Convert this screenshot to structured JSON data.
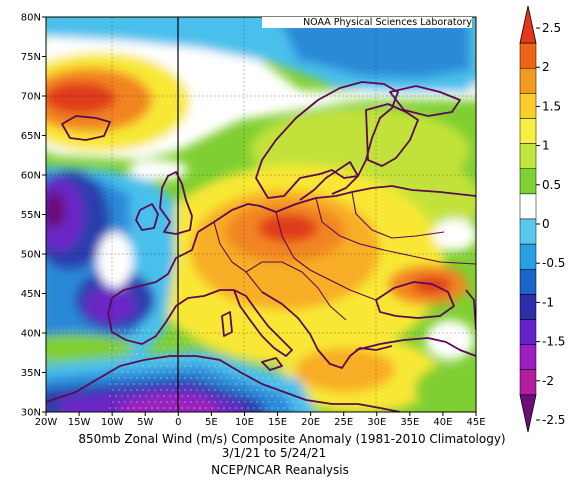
{
  "credit": "NOAA Physical Sciences Laboratory",
  "caption": {
    "line1": "850mb Zonal Wind (m/s) Composite Anomaly (1981-2010 Climatology)",
    "line2": "3/1/21  to 5/24/21",
    "line3": "NCEP/NCAR Reanalysis"
  },
  "axes": {
    "lon_labels": [
      "20W",
      "15W",
      "10W",
      "5W",
      "0",
      "5E",
      "10E",
      "15E",
      "20E",
      "25E",
      "30E",
      "35E",
      "40E",
      "45E"
    ],
    "lat_labels": [
      "80N",
      "75N",
      "70N",
      "65N",
      "60N",
      "55N",
      "50N",
      "45N",
      "40N",
      "35N",
      "30N"
    ]
  },
  "colorbar": {
    "labels": [
      "2.5",
      "2",
      "1.5",
      "1",
      "0.5",
      "0",
      "-0.5",
      "-1",
      "-1.5",
      "-2",
      "-2.5"
    ],
    "colors": [
      "#e8361a",
      "#f06418",
      "#f59a20",
      "#fcce2a",
      "#f8f040",
      "#c0e63a",
      "#7cd232",
      "#ffffff",
      "#5ac8ee",
      "#26a0e2",
      "#1b64c8",
      "#2a2ea8",
      "#6422c8",
      "#9c1ebe",
      "#b41c9e",
      "#6e0c78"
    ]
  },
  "map": {
    "domain": {
      "lon": [
        -20,
        45
      ],
      "lat": [
        30,
        80
      ]
    },
    "field_colors": {
      "dark_red": "#e03a1c",
      "orange": "#f28520",
      "light_orange": "#f8ae28",
      "yellow": "#f8e834",
      "yellow_green": "#c2e23a",
      "green": "#80cf32",
      "white": "#ffffff",
      "cyan": "#48c0ec",
      "blue": "#2a8ad8",
      "dark_blue": "#2a3eae",
      "violet": "#6a26c6",
      "purple": "#9c20bc",
      "dark_purple": "#6a0e7a"
    },
    "coastline_color": "#5a0a52"
  }
}
